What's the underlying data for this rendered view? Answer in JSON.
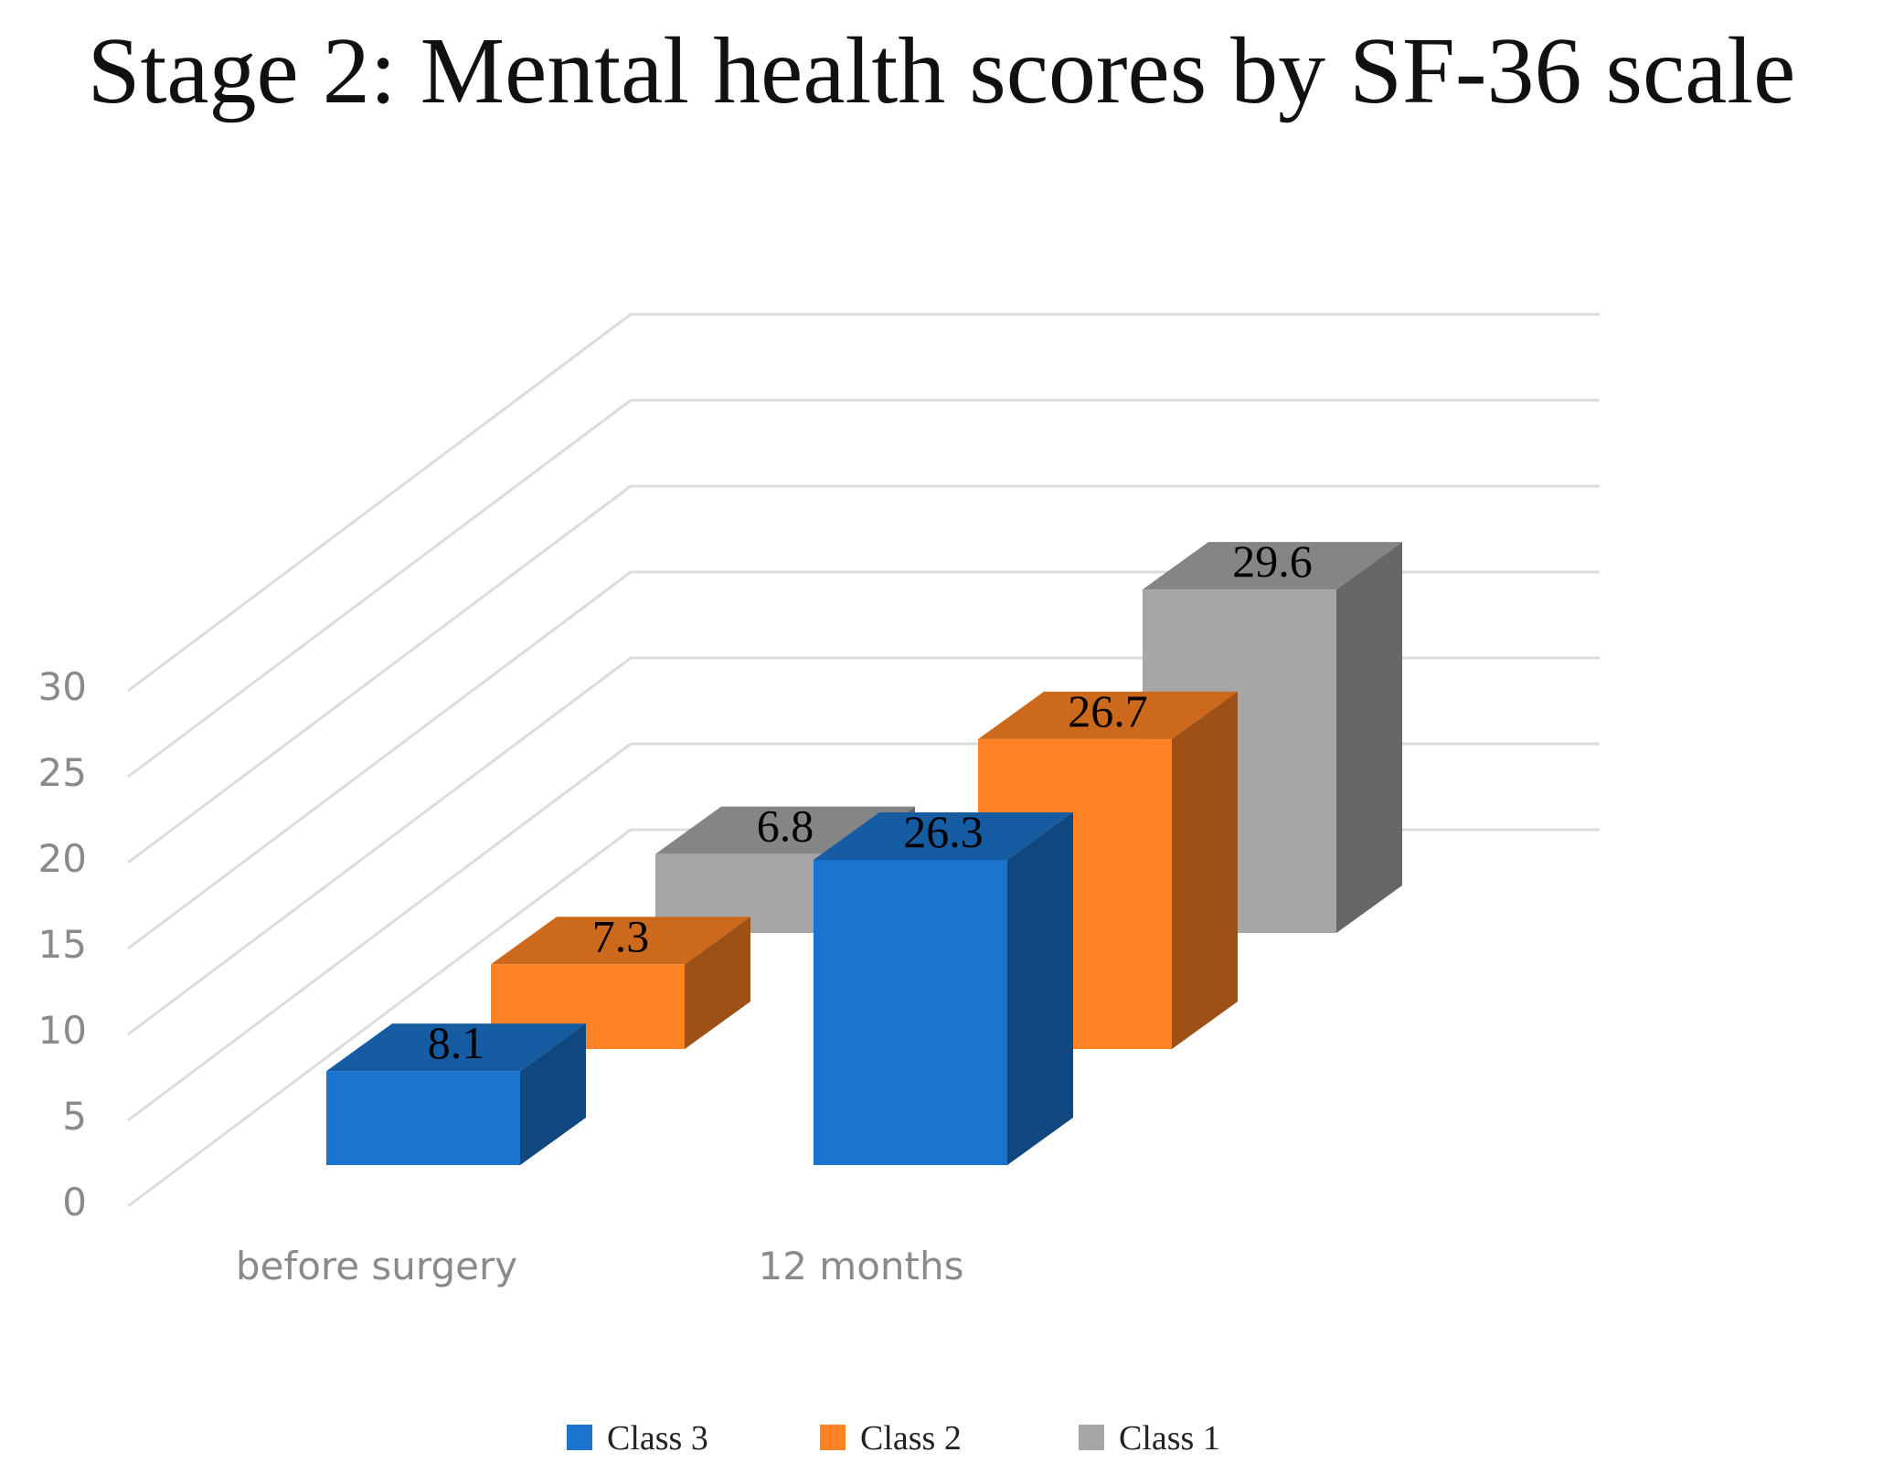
{
  "chart_data": {
    "type": "bar",
    "title": "Stage 2: Mental health scores by SF-36 scale",
    "xlabel": "",
    "ylabel": "",
    "categories": [
      "before surgery",
      "12 months"
    ],
    "series": [
      {
        "name": "Class 3",
        "values": [
          8.1,
          26.3
        ],
        "color": "#1a73cc"
      },
      {
        "name": "Class 2",
        "values": [
          7.3,
          26.7
        ],
        "color": "#ff8324"
      },
      {
        "name": "Class 1",
        "values": [
          6.8,
          29.6
        ],
        "color": "#a6a6a6"
      }
    ],
    "y_ticks": [
      "0",
      "5",
      "10",
      "15",
      "20",
      "25",
      "30"
    ],
    "ylim": [
      0,
      30
    ],
    "grid": true,
    "legend_position": "bottom",
    "style": "3d-clustered-column"
  }
}
